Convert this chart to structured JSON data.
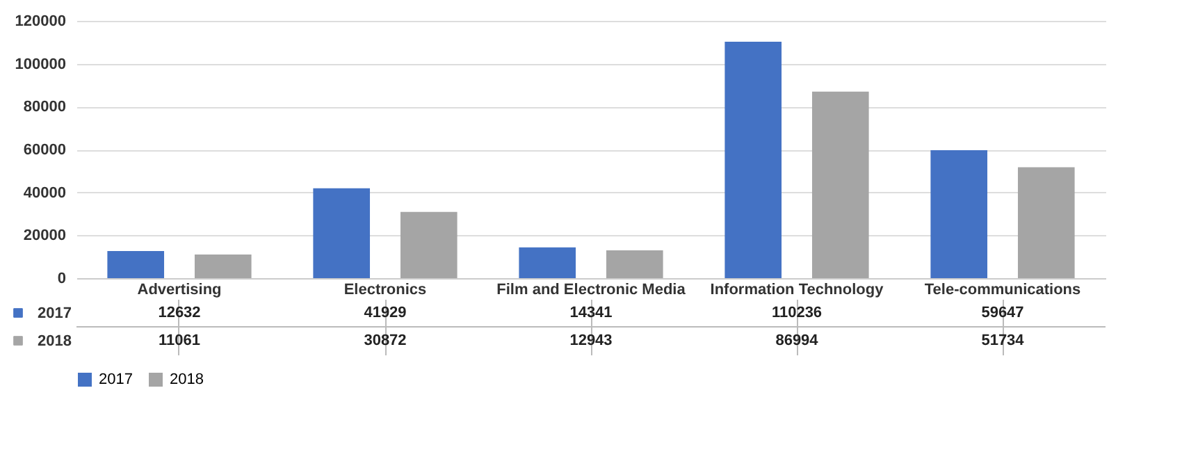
{
  "chart_data": {
    "type": "bar",
    "categories": [
      "Advertising",
      "Electronics",
      "Film and Electronic Media",
      "Information Technology",
      "Tele-communications"
    ],
    "series": [
      {
        "name": "2017",
        "color": "#4472c4",
        "values": [
          12632,
          41929,
          14341,
          110236,
          59647
        ]
      },
      {
        "name": "2018",
        "color": "#a5a5a5",
        "values": [
          11061,
          30872,
          12943,
          86994,
          51734
        ]
      }
    ],
    "ylim": [
      0,
      120000
    ],
    "yticks": [
      0,
      20000,
      40000,
      60000,
      80000,
      100000,
      120000
    ],
    "grid": "y",
    "legend": "bottom",
    "data_labels": true
  }
}
